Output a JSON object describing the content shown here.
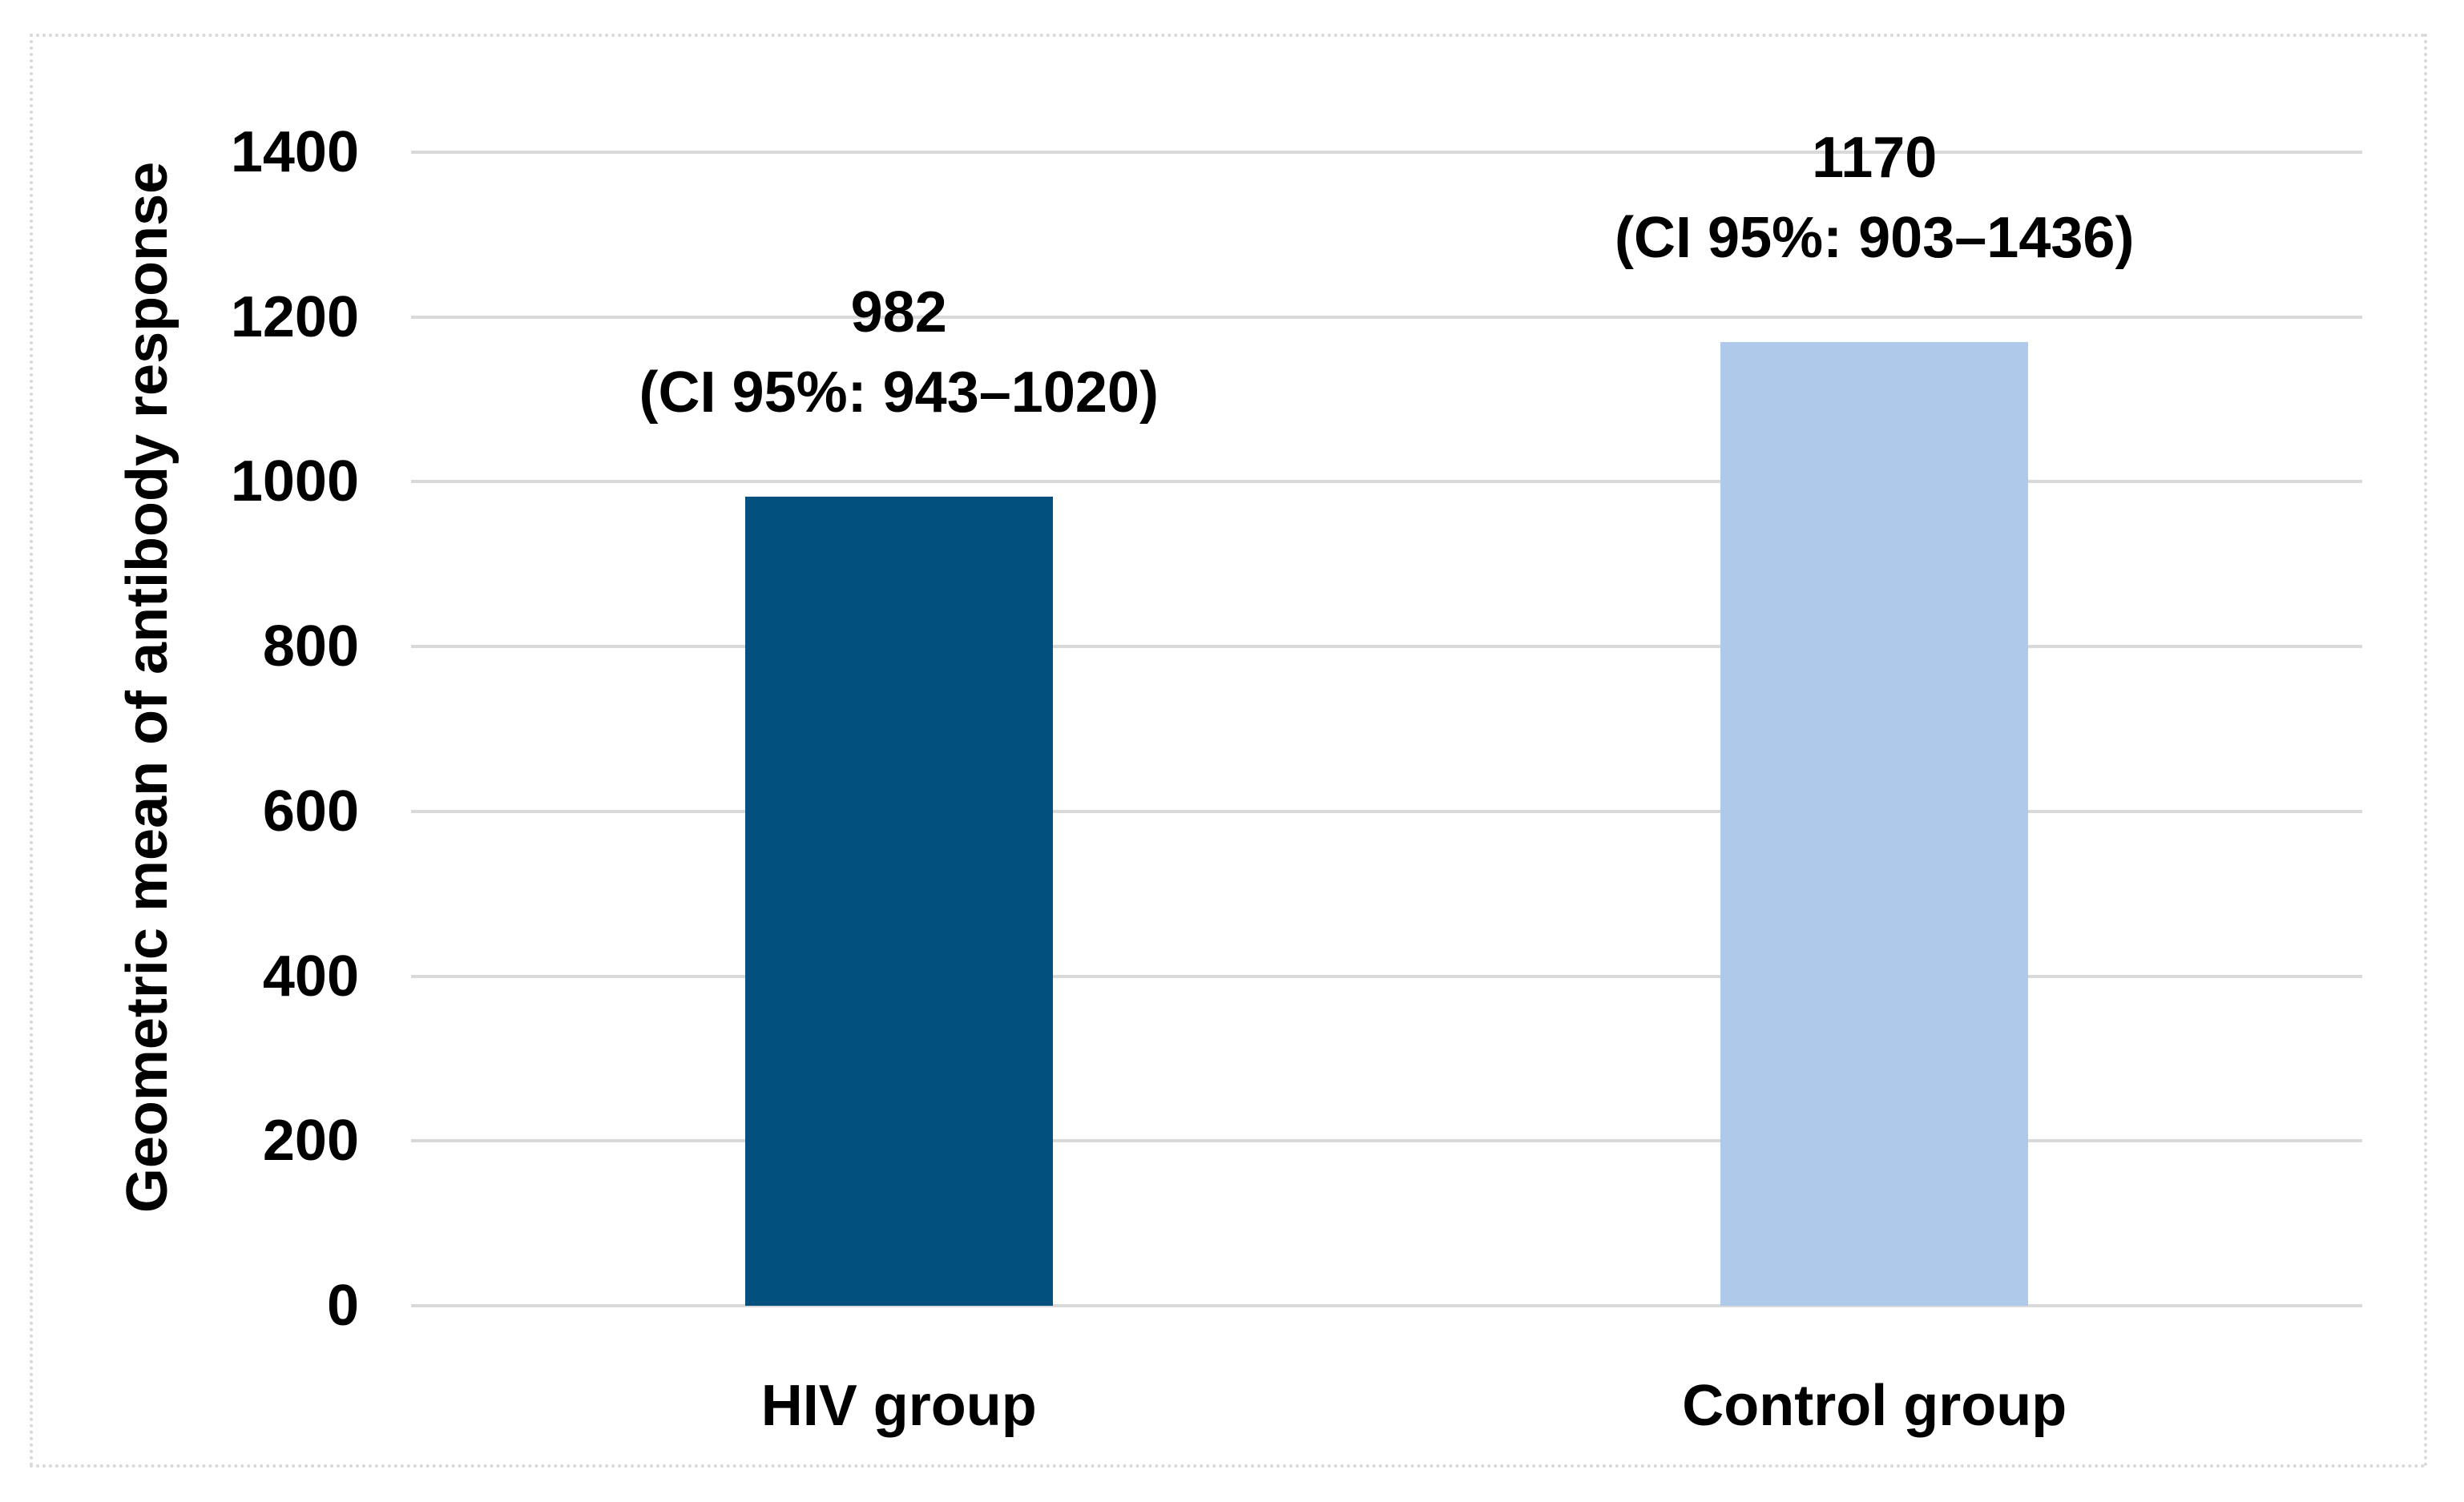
{
  "chart_data": {
    "type": "bar",
    "title": "",
    "xlabel": "",
    "ylabel": "Geometric mean of antibody response",
    "ylim": [
      0,
      1400
    ],
    "yticks": [
      0,
      200,
      400,
      600,
      800,
      1000,
      1200,
      1400
    ],
    "grid": true,
    "legend": "none",
    "categories": [
      "HIV group",
      "Control group"
    ],
    "values": [
      982,
      1170
    ],
    "ci95": [
      [
        943,
        1020
      ],
      [
        903,
        1436
      ]
    ],
    "bar_colors": [
      "#02507d",
      "#aec9ea"
    ],
    "gridline_color": "#d9d9d9",
    "border_color": "#d9d9d9",
    "annotations": [
      {
        "value_label": "982",
        "ci_label": "(CI 95%: 943–1020)"
      },
      {
        "value_label": "1170",
        "ci_label": "(CI 95%: 903–1436)"
      }
    ]
  }
}
